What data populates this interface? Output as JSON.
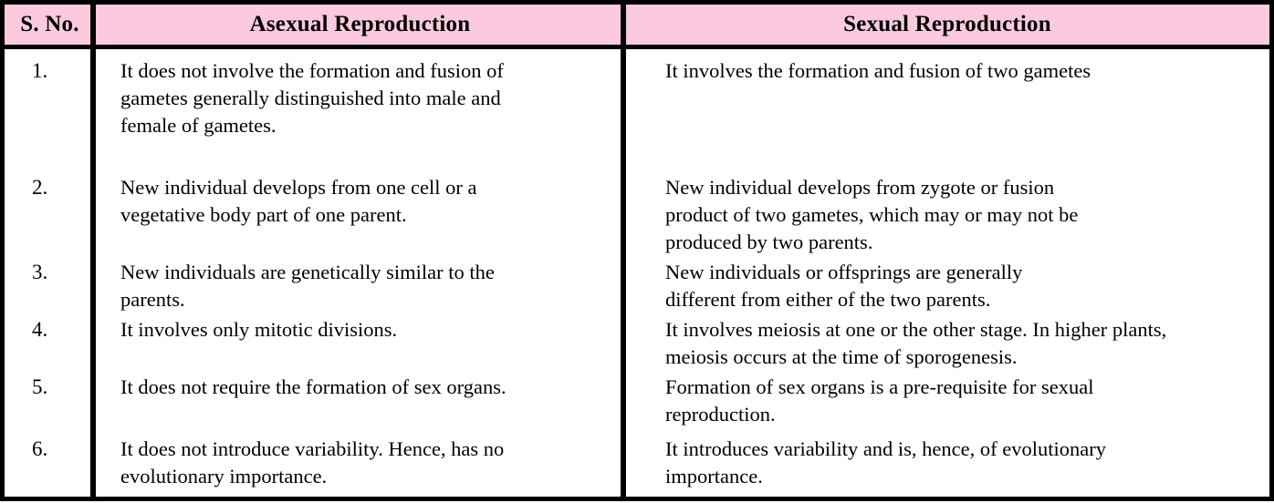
{
  "header": {
    "s_no": "S. No.",
    "asexual": "Asexual Reproduction",
    "sexual": "Sexual Reproduction"
  },
  "colors": {
    "header_bg": "#FCCADF",
    "border": "#000000",
    "text": "#000000"
  },
  "rows": [
    {
      "no": "1.",
      "asexual": "It does not involve the formation and fusion of\ngametes generally distinguished into male and\nfemale of gametes.",
      "sexual": "It involves the formation and fusion of two gametes"
    },
    {
      "no": "2.",
      "asexual": "New individual develops from one cell or a\nvegetative body part of one parent.",
      "sexual": "New individual develops from zygote or fusion\nproduct of two gametes, which may or may not be\nproduced by two parents."
    },
    {
      "no": "3.",
      "asexual": "New individuals are genetically similar to the\nparents.",
      "sexual": "New individuals or offsprings are generally\ndifferent from either of the two parents."
    },
    {
      "no": "4.",
      "asexual": "It involves only mitotic divisions.",
      "sexual": "It involves meiosis at one or the other stage. In higher plants,\nmeiosis occurs at the time of sporogenesis."
    },
    {
      "no": "5.",
      "asexual": "It does not require the formation of sex organs.",
      "sexual": "Formation of sex organs is a pre-requisite for sexual\nreproduction."
    },
    {
      "no": "6.",
      "asexual": "It does not introduce variability. Hence, has no\nevolutionary importance.",
      "sexual": "It introduces variability and is, hence, of evolutionary\nimportance."
    }
  ]
}
